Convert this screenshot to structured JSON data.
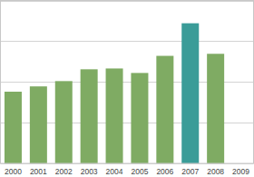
{
  "chart_data": {
    "type": "bar",
    "categories": [
      "2000",
      "2001",
      "2002",
      "2003",
      "2004",
      "2005",
      "2006",
      "2007",
      "2008",
      "2009"
    ],
    "values": [
      1.76,
      1.89,
      2.02,
      2.31,
      2.33,
      2.22,
      2.64,
      3.44,
      2.69,
      null
    ],
    "colors": [
      "#7fab63",
      "#7fab63",
      "#7fab63",
      "#7fab63",
      "#7fab63",
      "#7fab63",
      "#7fab63",
      "#3a9c98",
      "#7fab63",
      "#7fab63"
    ],
    "ylim": [
      0,
      4
    ],
    "yticks": [
      0,
      1,
      2,
      3,
      4
    ],
    "grid": true,
    "tick_labels": "x"
  }
}
